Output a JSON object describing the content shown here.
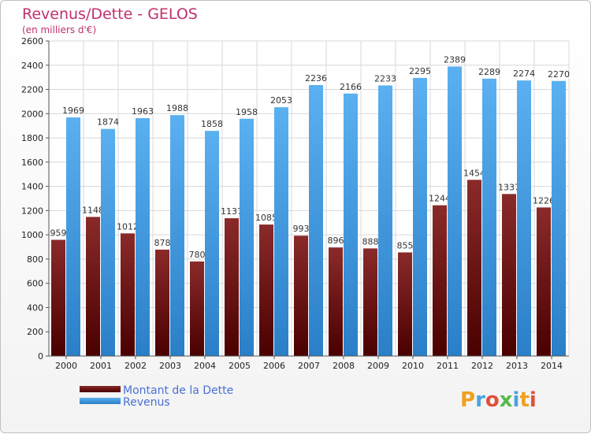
{
  "chart_data": {
    "type": "bar",
    "title": "Revenus/Dette - GELOS",
    "subtitle": "(en milliers d'€)",
    "categories": [
      "2000",
      "2001",
      "2002",
      "2003",
      "2004",
      "2005",
      "2006",
      "2007",
      "2008",
      "2009",
      "2010",
      "2011",
      "2012",
      "2013",
      "2014"
    ],
    "series": [
      {
        "name": "Montant de la Dette",
        "color": "#7a1e1e",
        "values": [
          959,
          1148,
          1012,
          878,
          780,
          1137,
          1085,
          993,
          896,
          888,
          855,
          1244,
          1454,
          1337,
          1226
        ],
        "labels": [
          "959",
          "1148",
          "1012",
          "878",
          "780",
          "1137",
          "1085",
          "993",
          "896",
          "888",
          "855",
          "1244",
          "1454",
          "1337",
          "1226"
        ]
      },
      {
        "name": "Revenus",
        "color": "#4ba3e8",
        "values": [
          1969,
          1874,
          1963,
          1988,
          1858,
          1958,
          2053,
          2236,
          2166,
          2233,
          2295,
          2389,
          2289,
          2274,
          2270
        ],
        "labels": [
          "1969",
          "1874",
          "1963",
          "1988",
          "1858",
          "1958",
          "2053",
          "2236",
          "2166",
          "2233",
          "2295",
          "2389",
          "2289",
          "2274",
          "2270"
        ]
      }
    ],
    "ylim": [
      0,
      2600
    ],
    "yticks": [
      0,
      200,
      400,
      600,
      800,
      1000,
      1200,
      1400,
      1600,
      1800,
      2000,
      2200,
      2400,
      2600
    ],
    "grid": true,
    "legend_position": "bottom-left"
  },
  "logo": {
    "text": "Proxiti"
  }
}
